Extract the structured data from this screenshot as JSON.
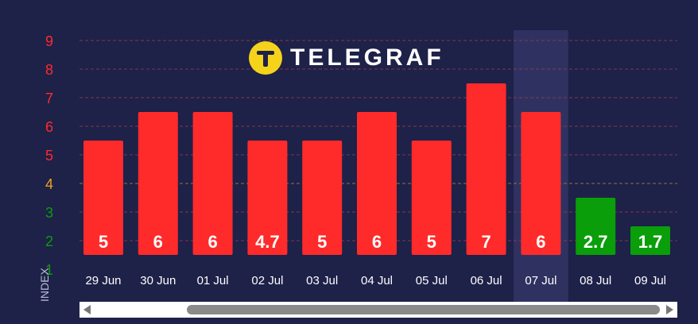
{
  "brand": {
    "name": "TELEGRAF",
    "badge_color": "#f5d31b"
  },
  "y_axis_title": "INDEX",
  "colors": {
    "background": "#1e2148",
    "red": "#ff2b2b",
    "green": "#0a9e0a",
    "amber": "#f0a020",
    "highlight_column": "#2f3260",
    "tick_label_white": "#ffffff"
  },
  "chart_data": {
    "type": "bar",
    "categories": [
      "29 Jun",
      "30 Jun",
      "01 Jul",
      "02 Jul",
      "03 Jul",
      "04 Jul",
      "05 Jul",
      "06 Jul",
      "07 Jul",
      "08 Jul",
      "09 Jul"
    ],
    "values": [
      5,
      6,
      6,
      4.7,
      5,
      6,
      5,
      7,
      6,
      2.7,
      1.7
    ],
    "bar_heights": [
      5.5,
      6.5,
      6.5,
      5.5,
      5.5,
      6.5,
      5.5,
      7.5,
      6.5,
      3.5,
      2.5
    ],
    "data_labels": [
      "5",
      "6",
      "6",
      "4.7",
      "5",
      "6",
      "5",
      "7",
      "6",
      "2.7",
      "1.7"
    ],
    "bar_colors": [
      "red",
      "red",
      "red",
      "red",
      "red",
      "red",
      "red",
      "red",
      "red",
      "green",
      "green"
    ],
    "highlighted_category": "07 Jul",
    "y_ticks": [
      "1",
      "2",
      "3",
      "4",
      "5",
      "6",
      "7",
      "8",
      "9"
    ],
    "y_tick_colors": [
      "green",
      "green",
      "green",
      "amber",
      "red",
      "red",
      "red",
      "red",
      "red"
    ],
    "ylim": [
      1.5,
      9.5
    ],
    "ylabel": "INDEX",
    "grid": true,
    "legend": "none"
  }
}
